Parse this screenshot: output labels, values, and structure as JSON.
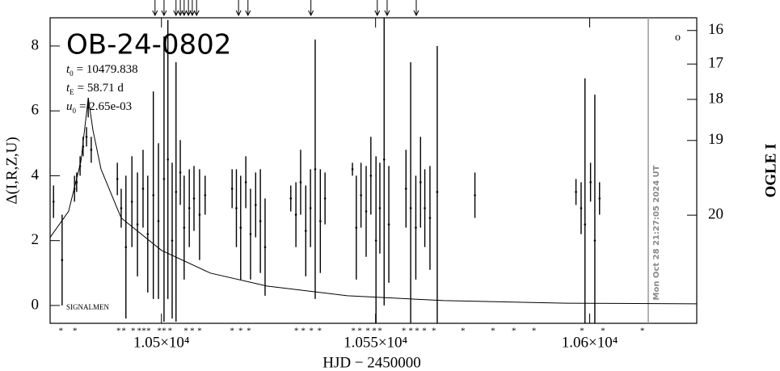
{
  "chart_data": {
    "type": "errorbar",
    "title": "OB-24-0802",
    "params": [
      {
        "symbol": "t",
        "subscript": "0",
        "text": "= 10479.838"
      },
      {
        "symbol": "t",
        "subscript": "E",
        "text": "= 58.71 d"
      },
      {
        "symbol": "u",
        "subscript": "0",
        "text": "= 2.65e-03"
      }
    ],
    "xlabel": "HJD − 2450000",
    "ylabel": "Δ(I,R,Z,U)",
    "y2label": "OGLE I",
    "note": "SIGNALMEN",
    "timestamp": "Mon Oct 28 21:27:05 2024 UT",
    "xlim": [
      10474,
      10625
    ],
    "ylim": [
      -0.55,
      8.87
    ],
    "xticks": [
      {
        "value": 10500,
        "label": "1.05×10⁴"
      },
      {
        "value": 10550,
        "label": "1.055×10⁴"
      },
      {
        "value": 10600,
        "label": "1.06×10⁴"
      }
    ],
    "yticks": [
      0,
      2,
      4,
      6,
      8
    ],
    "y2ticks": [
      16,
      17,
      18,
      19,
      20
    ],
    "color": "#000000",
    "series": [
      {
        "color": "#000000",
        "x": [
          10474.8,
          10476.8,
          10479.7,
          10480.2,
          10481.0,
          10481.7,
          10482.5,
          10482.9,
          10483.6,
          10489.7,
          10490.6,
          10491.7,
          10493.1,
          10494.4,
          10495.7,
          10496.8,
          10498.1,
          10499.3,
          10500.6,
          10501.5,
          10502.5,
          10503.4,
          10504.4,
          10505.3,
          10506.5,
          10507.6,
          10508.9,
          10510.2,
          10516.5,
          10517.5,
          10518.5,
          10519.7,
          10520.8,
          10522.0,
          10523.1,
          10524.2,
          10530.2,
          10531.4,
          10532.5,
          10533.7,
          10534.8,
          10535.9,
          10537.1,
          10538.2,
          10544.6,
          10545.5,
          10546.6,
          10547.8,
          10548.9,
          10550.1,
          10551.0,
          10552.0,
          10553.1,
          10557.1,
          10558.2,
          10559.4,
          10560.5,
          10561.5,
          10562.7,
          10564.4,
          10573.2,
          10596.8,
          10598.0,
          10598.9,
          10600.2,
          10601.2,
          10602.3
        ],
        "values": [
          3.2,
          1.4,
          3.6,
          3.8,
          4.3,
          4.9,
          5.2,
          6.1,
          4.8,
          3.9,
          3.0,
          1.8,
          3.2,
          2.5,
          3.6,
          2.2,
          3.4,
          2.6,
          3.9,
          4.5,
          2.0,
          3.5,
          4.1,
          2.4,
          3.0,
          3.3,
          2.8,
          3.4,
          3.6,
          3.0,
          2.4,
          3.8,
          2.2,
          3.1,
          2.6,
          1.8,
          3.3,
          2.8,
          3.8,
          2.3,
          3.0,
          4.2,
          2.6,
          3.3,
          4.2,
          2.4,
          3.4,
          2.9,
          4.0,
          2.0,
          3.0,
          4.5,
          2.5,
          3.6,
          3.0,
          2.4,
          3.8,
          3.0,
          2.7,
          3.5,
          3.4,
          3.5,
          3.0,
          2.5,
          3.8,
          2.0,
          3.3
        ],
        "errors": [
          0.5,
          1.4,
          0.4,
          0.3,
          0.3,
          0.3,
          0.3,
          0.3,
          0.4,
          0.5,
          0.6,
          2.2,
          1.4,
          1.6,
          1.2,
          1.8,
          3.2,
          2.4,
          4.4,
          4.3,
          2.4,
          4.0,
          1.0,
          1.6,
          1.2,
          1.0,
          1.4,
          0.6,
          0.6,
          1.2,
          1.6,
          0.8,
          1.4,
          1.0,
          1.6,
          1.5,
          0.4,
          1.0,
          1.0,
          1.4,
          1.2,
          4.0,
          1.6,
          0.8,
          0.2,
          1.6,
          1.0,
          1.4,
          1.2,
          2.6,
          1.4,
          4.5,
          1.8,
          1.2,
          4.5,
          1.6,
          1.4,
          1.2,
          1.6,
          4.5,
          0.7,
          0.4,
          0.8,
          4.5,
          0.6,
          4.5,
          0.5
        ]
      }
    ],
    "model": {
      "x": [
        10474,
        10478.3,
        10481.2,
        10482.9,
        10484,
        10485.9,
        10490.6,
        10500,
        10511.4,
        10524.6,
        10543.4,
        10566,
        10594.4,
        10625
      ],
      "values": [
        2.1,
        2.9,
        4.44,
        6.4,
        5.4,
        4.2,
        2.7,
        1.7,
        1.0,
        0.6,
        0.3,
        0.15,
        0.07,
        0.05
      ]
    },
    "data_times": [
      10476.5,
      10479.8,
      10490.0,
      10491.2,
      10493.4,
      10494.8,
      10495.9,
      10497.0,
      10499.5,
      10500.6,
      10502.0,
      10505.7,
      10507.2,
      10508.9,
      10516.5,
      10518.5,
      10520.4,
      10531.5,
      10533.1,
      10535.0,
      10536.9,
      10544.8,
      10546.3,
      10548.2,
      10549.7,
      10551.0,
      10556.6,
      10558.2,
      10559.7,
      10561.4,
      10563.6,
      10570.4,
      10577.4,
      10582.3,
      10587.0,
      10598.2,
      10603.1,
      10612.3
    ],
    "arrow_times": [
      10498.5,
      10500.6,
      10503.4,
      10504.4,
      10505.3,
      10506.3,
      10507.2,
      10508.2,
      10518.0,
      10520.2,
      10534.9,
      10550.4,
      10552.7,
      10559.5
    ]
  }
}
